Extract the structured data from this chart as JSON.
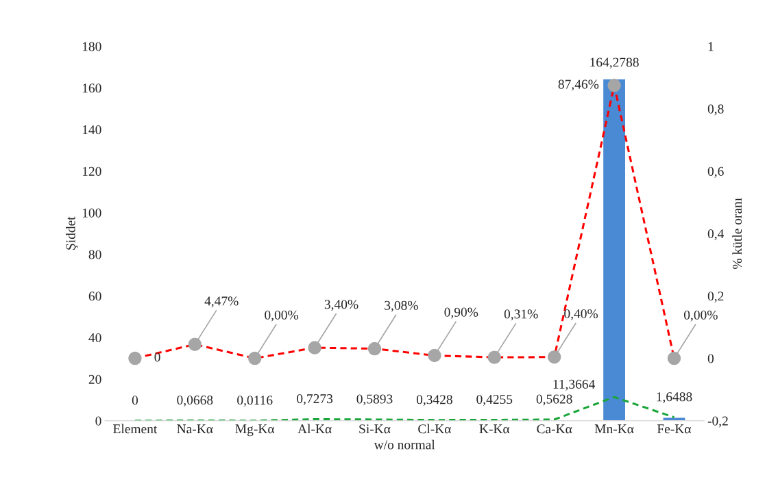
{
  "chart_data": {
    "type": "bar",
    "xlabel": "w/o normal",
    "ylabel": "Şiddet",
    "y2label": "% kütle oranı",
    "categories": [
      "Element",
      "Na-Kα",
      "Mg-Kα",
      "Al-Kα",
      "Si-Kα",
      "Cl-Kα",
      "K-Kα",
      "Ca-Kα",
      "Mn-Kα",
      "Fe-Kα"
    ],
    "series": [
      {
        "color": "#4a8ad4",
        "values": [
          null,
          null,
          null,
          null,
          null,
          null,
          null,
          null,
          164.2788,
          1.6
        ],
        "value_labels": [
          null,
          null,
          null,
          null,
          null,
          null,
          null,
          null,
          "164,2788",
          null
        ]
      },
      {
        "type": "line",
        "axis": "y2",
        "color": "#ff0000",
        "line_style": "dashed",
        "marker": "circle",
        "values": [
          0,
          0.0447,
          0,
          0.034,
          0.0308,
          0.009,
          0.0031,
          0.004,
          0.8746,
          0
        ],
        "value_labels": [
          "0",
          "4,47%",
          "0,00%",
          "3,40%",
          "3,08%",
          "0,90%",
          "0,31%",
          "0,40%",
          "87,46%",
          "0,00%"
        ]
      },
      {
        "type": "line",
        "color": "#1aa53a",
        "line_style": "dashed",
        "values": [
          0,
          0.0668,
          0.0116,
          0.7273,
          0.5893,
          0.3428,
          0.4255,
          0.5628,
          11.3664,
          1.6488
        ],
        "value_labels": [
          "0",
          "0,0668",
          "0,0116",
          "0,7273",
          "0,5893",
          "0,3428",
          "0,4255",
          "0,5628",
          "11,3664",
          "1,6488"
        ]
      }
    ],
    "ylim": [
      0,
      180
    ],
    "yticks": [
      0,
      20,
      40,
      60,
      80,
      100,
      120,
      140,
      160,
      180
    ],
    "y2lim": [
      -0.2,
      1
    ],
    "y2ticks": [
      {
        "value": -0.2,
        "label": "-0,2"
      },
      0,
      {
        "value": 0.2,
        "label": "0,2"
      },
      {
        "value": 0.4,
        "label": "0,4"
      },
      {
        "value": 0.6,
        "label": "0,6"
      },
      {
        "value": 0.8,
        "label": "0,8"
      },
      1
    ],
    "grid": false,
    "legend": false
  }
}
